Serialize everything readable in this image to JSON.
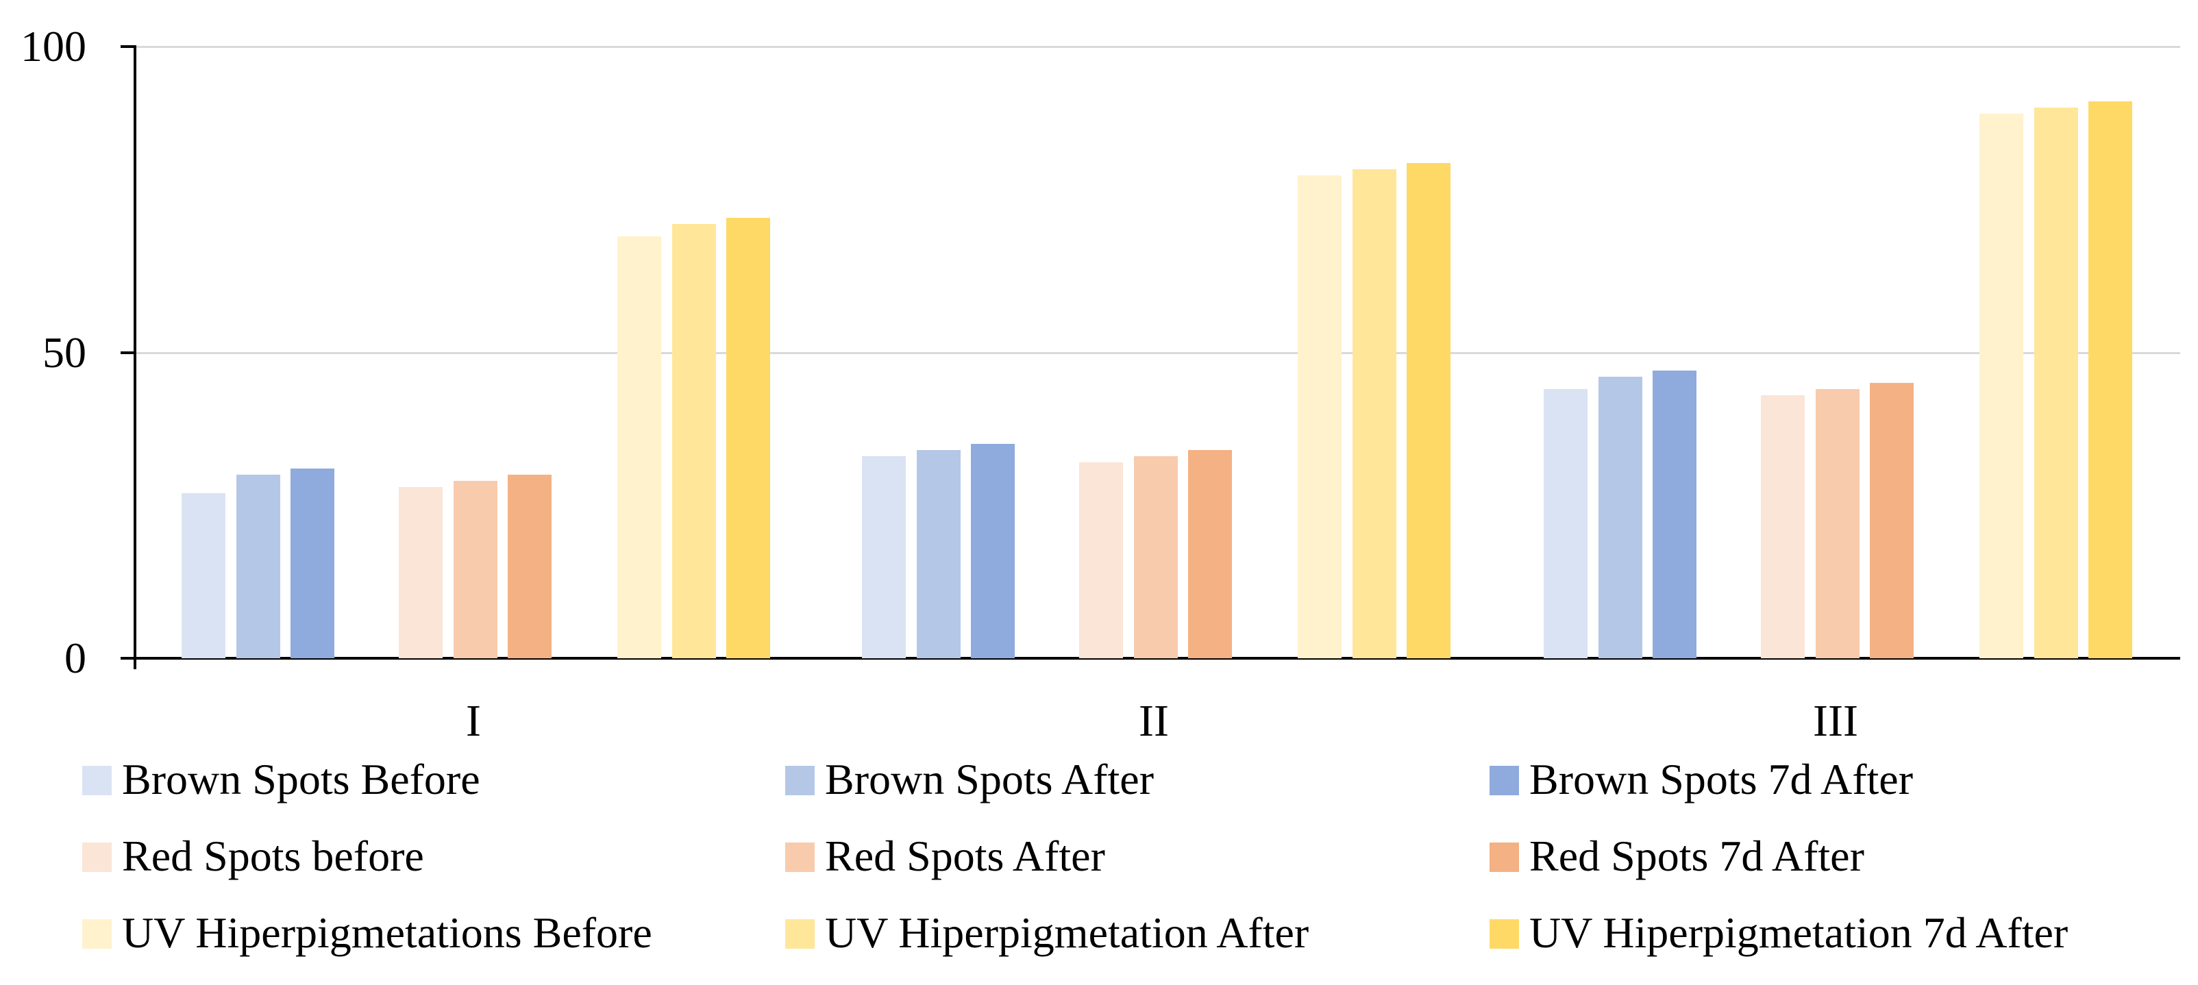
{
  "chart_data": {
    "type": "bar",
    "title": "",
    "xlabel": "",
    "ylabel": "",
    "categories": [
      "I",
      "II",
      "III"
    ],
    "series": [
      {
        "name": "Brown Spots Before",
        "color": "#dae3f3",
        "values": [
          27,
          33,
          44
        ]
      },
      {
        "name": "Brown Spots After",
        "color": "#b4c7e7",
        "values": [
          30,
          34,
          46
        ]
      },
      {
        "name": "Brown Spots 7d After",
        "color": "#8faadc",
        "values": [
          31,
          35,
          47
        ]
      },
      {
        "name": "Red Spots before",
        "color": "#fbe5d6",
        "values": [
          28,
          32,
          43
        ]
      },
      {
        "name": "Red Spots After",
        "color": "#f8cbad",
        "values": [
          29,
          33,
          44
        ]
      },
      {
        "name": "Red Spots 7d After",
        "color": "#f4b183",
        "values": [
          30,
          34,
          45
        ]
      },
      {
        "name": "UV Hiperpigmetations Before",
        "color": "#fff2cc",
        "values": [
          69,
          79,
          89
        ]
      },
      {
        "name": "UV Hiperpigmetation After",
        "color": "#ffe699",
        "values": [
          71,
          80,
          90
        ]
      },
      {
        "name": "UV Hiperpigmetation 7d After",
        "color": "#ffd966",
        "values": [
          72,
          81,
          91
        ]
      }
    ],
    "y_ticks": [
      0,
      50,
      100
    ],
    "ylim": [
      0,
      100
    ],
    "grid": "horizontal",
    "gridline_color": "#d9d9d9",
    "axis_color": "#000000",
    "legend_position": "bottom"
  }
}
